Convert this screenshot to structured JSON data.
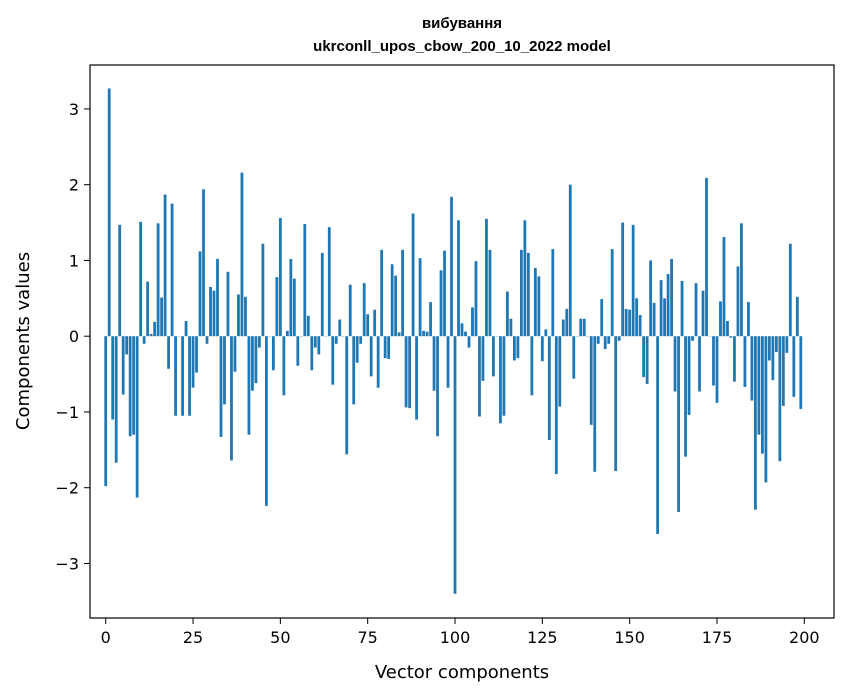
{
  "chart_data": {
    "type": "bar",
    "title_line1": "вибування",
    "title_line2": "ukrconll_upos_cbow_200_10_2022 model",
    "xlabel": "Vector components",
    "ylabel": "Components values",
    "xlim": [
      -4.5,
      208.5
    ],
    "ylim": [
      -3.72,
      3.58
    ],
    "xticks": [
      0,
      25,
      50,
      75,
      100,
      125,
      150,
      175,
      200
    ],
    "yticks": [
      -3,
      -2,
      -1,
      0,
      1,
      2,
      3
    ],
    "bar_color": "#1f77b4",
    "values": [
      -1.98,
      3.27,
      -1.1,
      -1.67,
      1.47,
      -0.77,
      -0.24,
      -1.32,
      -1.3,
      -2.13,
      1.51,
      -0.1,
      0.72,
      0.03,
      0.19,
      1.49,
      0.51,
      1.87,
      -0.43,
      1.75,
      -1.05,
      0.0,
      -1.05,
      0.2,
      -1.05,
      -0.68,
      -0.48,
      1.12,
      1.94,
      -0.1,
      0.65,
      0.6,
      1.02,
      -1.33,
      -0.9,
      0.85,
      -1.64,
      -0.47,
      0.55,
      2.16,
      0.52,
      -1.3,
      -0.72,
      -0.62,
      -0.15,
      1.22,
      -2.24,
      0.0,
      -0.45,
      0.78,
      1.56,
      -0.78,
      0.07,
      1.02,
      0.76,
      -0.39,
      0.0,
      1.48,
      0.27,
      -0.45,
      -0.15,
      -0.24,
      1.1,
      0.0,
      1.44,
      -0.64,
      -0.1,
      0.22,
      0.0,
      -1.56,
      0.68,
      -0.9,
      -0.35,
      -0.1,
      0.7,
      0.29,
      -0.53,
      0.35,
      -0.68,
      1.14,
      -0.29,
      -0.3,
      0.95,
      0.8,
      0.05,
      1.14,
      -0.94,
      -0.95,
      1.62,
      -1.1,
      1.03,
      0.07,
      0.06,
      0.45,
      -0.72,
      -1.32,
      0.87,
      1.13,
      -0.68,
      1.84,
      -3.4,
      1.53,
      0.17,
      0.06,
      -0.15,
      0.38,
      0.99,
      -1.06,
      -0.59,
      1.55,
      1.14,
      -0.53,
      0.0,
      -1.15,
      -1.05,
      0.59,
      0.23,
      -0.32,
      -0.29,
      1.14,
      1.53,
      1.1,
      -0.78,
      0.9,
      0.79,
      -0.33,
      0.09,
      -1.37,
      1.15,
      -1.82,
      -0.93,
      0.22,
      0.36,
      2.0,
      -0.56,
      0.0,
      0.23,
      0.23,
      0.0,
      -1.17,
      -1.79,
      -0.1,
      0.49,
      -0.17,
      -0.1,
      1.15,
      -1.78,
      -0.06,
      1.5,
      0.36,
      0.35,
      1.47,
      0.5,
      0.28,
      -0.54,
      -0.63,
      1.0,
      0.44,
      -2.61,
      0.74,
      0.5,
      0.82,
      1.02,
      -0.73,
      -2.32,
      0.73,
      -1.59,
      -1.04,
      -0.06,
      0.7,
      -0.73,
      0.6,
      2.09,
      0.0,
      -0.65,
      -0.88,
      0.46,
      1.31,
      0.2,
      -0.02,
      -0.6,
      0.92,
      1.49,
      -0.67,
      0.45,
      -0.85,
      -2.29,
      -1.3,
      -1.55,
      -1.93,
      -0.32,
      -0.58,
      -0.21,
      -1.65,
      -0.92,
      -0.22,
      1.22,
      -0.8,
      0.52,
      -0.96
    ]
  }
}
